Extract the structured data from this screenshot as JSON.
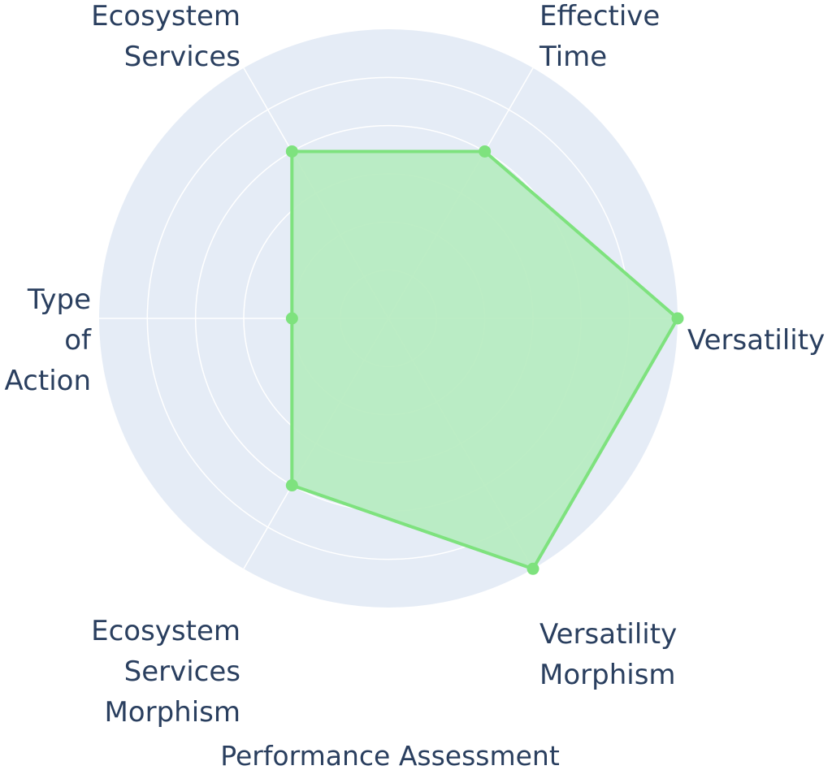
{
  "chart_data": {
    "type": "radar",
    "title": "",
    "xlabel": "Performance Assessment",
    "axes": [
      "Versatility",
      "Effective Time",
      "Ecosystem Services",
      "Type of Action",
      "Ecosystem Services Morphism",
      "Versatility Morphism"
    ],
    "series": [
      {
        "values": [
          3,
          2,
          2,
          1,
          2,
          3
        ],
        "color": "#7ee27e",
        "fill": "#b6ebc0"
      }
    ],
    "rlim": [
      0,
      3
    ],
    "grid": true,
    "background": "#e5ecf6",
    "gridline_color": "#ffffff"
  }
}
